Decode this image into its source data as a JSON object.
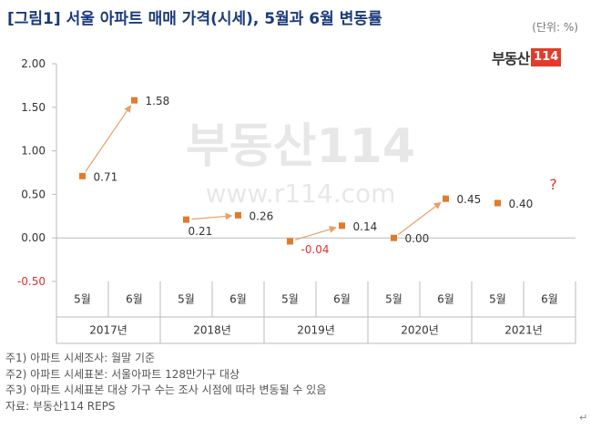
{
  "header": {
    "title": "[그림1] 서울 아파트 매매 가격(시세), 5월과 6월 변동률",
    "unit": "(단위: %)"
  },
  "logo": {
    "text": "부동산",
    "box": "114"
  },
  "watermark": {
    "logo": "부동산114",
    "url": "www.r114.com"
  },
  "chart_data": {
    "type": "scatter",
    "y_ticks": [
      "2.00",
      "1.50",
      "1.00",
      "0.50",
      "0.00",
      "-0.50"
    ],
    "ylim": [
      -0.5,
      2.0
    ],
    "grid": false,
    "categories": [
      {
        "year": "2017년",
        "months": [
          "5월",
          "6월"
        ],
        "values": [
          0.71,
          1.58
        ],
        "labels": [
          "0.71",
          "1.58"
        ]
      },
      {
        "year": "2018년",
        "months": [
          "5월",
          "6월"
        ],
        "values": [
          0.21,
          0.26
        ],
        "labels": [
          "0.21",
          "0.26"
        ]
      },
      {
        "year": "2019년",
        "months": [
          "5월",
          "6월"
        ],
        "values": [
          -0.04,
          0.14
        ],
        "labels": [
          "-0.04",
          "0.14"
        ]
      },
      {
        "year": "2020년",
        "months": [
          "5월",
          "6월"
        ],
        "values": [
          0.0,
          0.45
        ],
        "labels": [
          "0.00",
          "0.45"
        ]
      },
      {
        "year": "2021년",
        "months": [
          "5월",
          "6월"
        ],
        "values": [
          0.4,
          null
        ],
        "labels": [
          "0.40",
          "?"
        ]
      }
    ],
    "colors": {
      "marker": "#e07b2c",
      "arrow": "#e8a06a",
      "negative": "#e03030",
      "question": "#e03030",
      "axis": "#bbbbbb"
    }
  },
  "notes": [
    "주1) 아파트 시세조사: 월말 기준",
    "주2) 아파트 시세표본: 서울아파트 128만가구 대상",
    "주3) 아파트 시세표본 대상 가구 수는 조사 시점에 따라 변동될 수 있음",
    "자료: 부동산114 REPS"
  ],
  "corner_mark": "↵"
}
